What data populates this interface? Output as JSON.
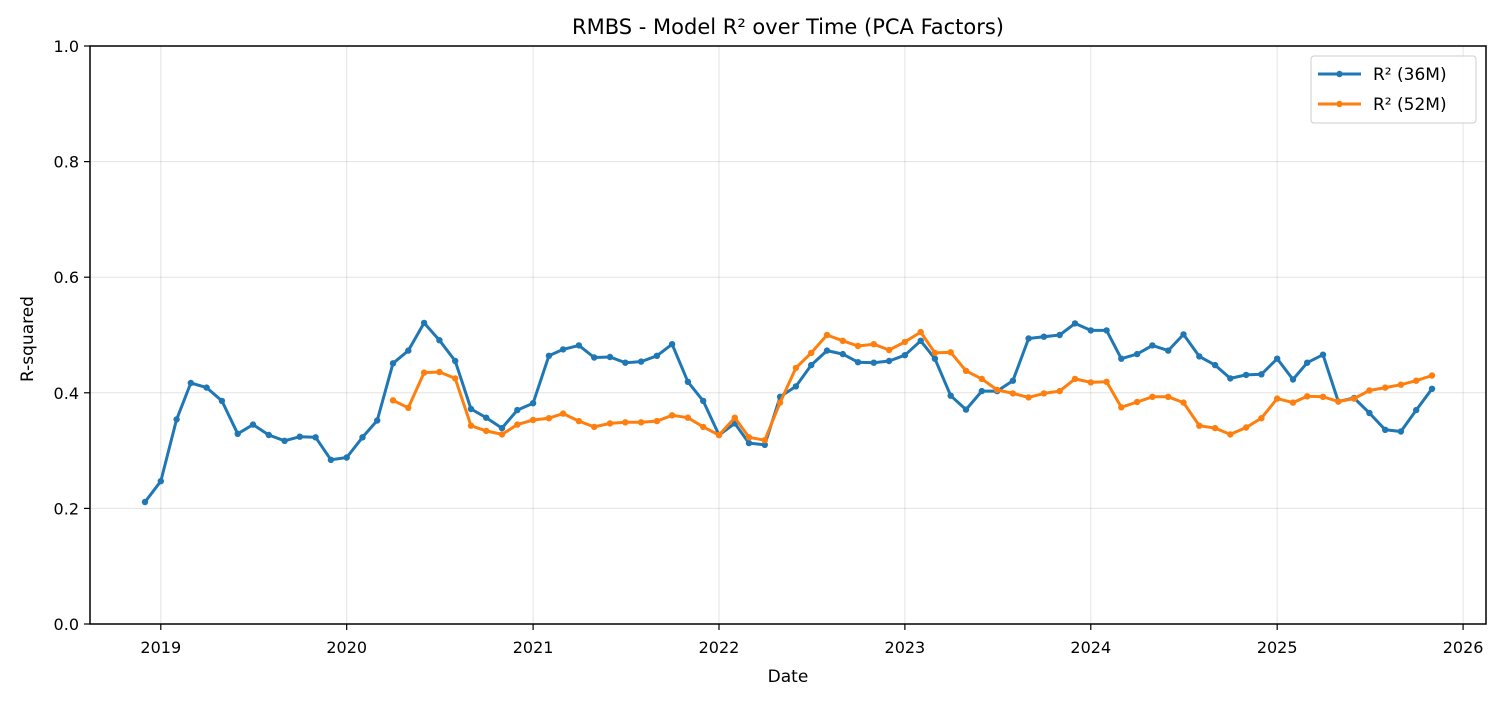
{
  "chart_data": {
    "type": "line",
    "title": "RMBS - Model R² over Time (PCA Factors)",
    "xlabel": "Date",
    "ylabel": "R-squared",
    "ylim": [
      0,
      1
    ],
    "xlim": [
      "2018-08-15",
      "2026-02-15"
    ],
    "yticks": [
      "0.0",
      "0.2",
      "0.4",
      "0.6",
      "0.8",
      "1.0"
    ],
    "xticks": [
      "2019",
      "2020",
      "2021",
      "2022",
      "2023",
      "2024",
      "2025",
      "2026"
    ],
    "grid": true,
    "legend_position": "top-right",
    "colors": {
      "s36": "#1f77b4",
      "s52": "#ff7f0e"
    },
    "series": [
      {
        "name": "R² (36M)",
        "start": "2018-12",
        "values": [
          0.211,
          0.247,
          0.354,
          0.417,
          0.409,
          0.386,
          0.329,
          0.345,
          0.327,
          0.317,
          0.324,
          0.323,
          0.284,
          0.288,
          0.323,
          0.352,
          0.451,
          0.473,
          0.521,
          0.491,
          0.455,
          0.372,
          0.357,
          0.339,
          0.37,
          0.382,
          0.464,
          0.475,
          0.482,
          0.461,
          0.462,
          0.452,
          0.454,
          0.464,
          0.484,
          0.419,
          0.386,
          0.327,
          0.347,
          0.313,
          0.31,
          0.393,
          0.411,
          0.448,
          0.473,
          0.467,
          0.453,
          0.452,
          0.455,
          0.465,
          0.49,
          0.459,
          0.395,
          0.371,
          0.403,
          0.403,
          0.421,
          0.494,
          0.497,
          0.5,
          0.52,
          0.508,
          0.508,
          0.459,
          0.467,
          0.482,
          0.473,
          0.501,
          0.463,
          0.448,
          0.425,
          0.431,
          0.432,
          0.459,
          0.423,
          0.452,
          0.466,
          0.385,
          0.391,
          0.365,
          0.336,
          0.333,
          0.37,
          0.407
        ]
      },
      {
        "name": "R² (52M)",
        "start": "2020-04",
        "values": [
          0.387,
          0.374,
          0.435,
          0.436,
          0.425,
          0.343,
          0.334,
          0.328,
          0.345,
          0.353,
          0.356,
          0.364,
          0.351,
          0.341,
          0.347,
          0.349,
          0.349,
          0.351,
          0.361,
          0.357,
          0.341,
          0.327,
          0.357,
          0.323,
          0.318,
          0.383,
          0.443,
          0.469,
          0.5,
          0.49,
          0.481,
          0.484,
          0.474,
          0.488,
          0.505,
          0.469,
          0.47,
          0.438,
          0.424,
          0.405,
          0.399,
          0.392,
          0.399,
          0.403,
          0.424,
          0.418,
          0.419,
          0.375,
          0.384,
          0.393,
          0.393,
          0.383,
          0.343,
          0.339,
          0.328,
          0.34,
          0.356,
          0.39,
          0.383,
          0.394,
          0.393,
          0.385,
          0.39,
          0.404,
          0.409,
          0.414,
          0.421,
          0.43
        ]
      }
    ]
  }
}
